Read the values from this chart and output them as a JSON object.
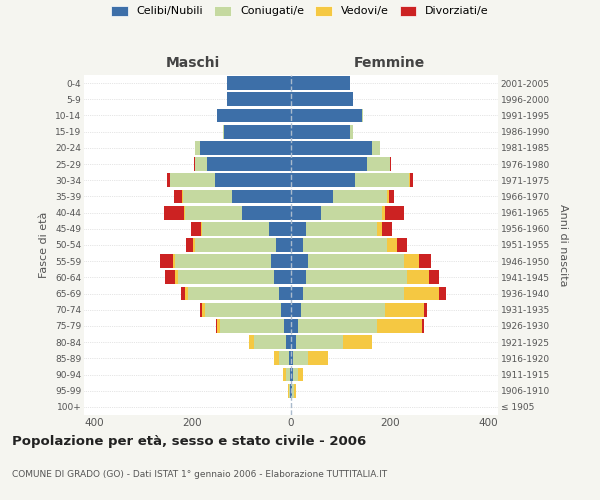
{
  "age_groups": [
    "100+",
    "95-99",
    "90-94",
    "85-89",
    "80-84",
    "75-79",
    "70-74",
    "65-69",
    "60-64",
    "55-59",
    "50-54",
    "45-49",
    "40-44",
    "35-39",
    "30-34",
    "25-29",
    "20-24",
    "15-19",
    "10-14",
    "5-9",
    "0-4"
  ],
  "birth_years": [
    "≤ 1905",
    "1906-1910",
    "1911-1915",
    "1916-1920",
    "1921-1925",
    "1926-1930",
    "1931-1935",
    "1936-1940",
    "1941-1945",
    "1946-1950",
    "1951-1955",
    "1956-1960",
    "1961-1965",
    "1966-1970",
    "1971-1975",
    "1976-1980",
    "1981-1985",
    "1986-1990",
    "1991-1995",
    "1996-2000",
    "2001-2005"
  ],
  "males": {
    "celibi": [
      0,
      2,
      3,
      5,
      10,
      15,
      20,
      25,
      35,
      40,
      30,
      45,
      100,
      120,
      155,
      170,
      185,
      135,
      150,
      130,
      130
    ],
    "coniugati": [
      0,
      3,
      8,
      20,
      65,
      130,
      155,
      185,
      195,
      195,
      165,
      135,
      115,
      100,
      90,
      25,
      10,
      2,
      0,
      0,
      0
    ],
    "vedovi": [
      0,
      2,
      5,
      10,
      10,
      5,
      5,
      5,
      5,
      5,
      3,
      2,
      2,
      2,
      1,
      0,
      0,
      0,
      0,
      0,
      0
    ],
    "divorziati": [
      0,
      0,
      0,
      0,
      0,
      3,
      5,
      8,
      20,
      25,
      15,
      20,
      40,
      15,
      5,
      2,
      0,
      0,
      0,
      0,
      0
    ]
  },
  "females": {
    "nubili": [
      0,
      3,
      5,
      5,
      10,
      15,
      20,
      25,
      30,
      35,
      25,
      30,
      60,
      85,
      130,
      155,
      165,
      120,
      145,
      125,
      120
    ],
    "coniugate": [
      0,
      3,
      10,
      30,
      95,
      160,
      170,
      205,
      205,
      195,
      170,
      145,
      125,
      110,
      110,
      45,
      15,
      5,
      2,
      0,
      0
    ],
    "vedove": [
      0,
      5,
      10,
      40,
      60,
      90,
      80,
      70,
      45,
      30,
      20,
      10,
      5,
      3,
      2,
      0,
      0,
      0,
      0,
      0,
      0
    ],
    "divorziate": [
      0,
      0,
      0,
      0,
      0,
      5,
      5,
      15,
      20,
      25,
      20,
      20,
      40,
      10,
      5,
      2,
      0,
      0,
      0,
      0,
      0
    ]
  },
  "colors": {
    "celibi_nubili": "#3d6fa8",
    "coniugati_e": "#c5d9a0",
    "vedovi_e": "#f5c842",
    "divorziati_e": "#cc2222"
  },
  "title": "Popolazione per età, sesso e stato civile - 2006",
  "subtitle": "COMUNE DI GRADO (GO) - Dati ISTAT 1° gennaio 2006 - Elaborazione TUTTITALIA.IT",
  "xlabel_left": "Maschi",
  "xlabel_right": "Femmine",
  "ylabel_left": "Fasce di età",
  "ylabel_right": "Anni di nascita",
  "xlim": 420,
  "legend_labels": [
    "Celibi/Nubili",
    "Coniugati/e",
    "Vedovi/e",
    "Divorziati/e"
  ],
  "bg_color": "#f5f5f0",
  "bar_bg_color": "#ffffff"
}
